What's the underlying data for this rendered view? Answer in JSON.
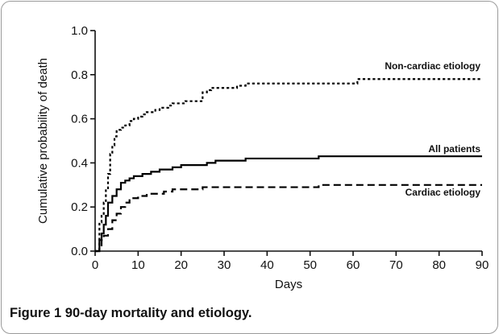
{
  "caption": {
    "lead": "Figure 1",
    "text": "90-day mortality and etiology."
  },
  "chart_data": {
    "type": "line",
    "step": true,
    "xlabel": "Days",
    "ylabel": "Cumulative probability of death",
    "xlim": [
      0,
      90
    ],
    "ylim": [
      0,
      1
    ],
    "xticks": [
      0,
      10,
      20,
      30,
      40,
      50,
      60,
      70,
      80,
      90
    ],
    "yticks": [
      "0.0",
      "0.2",
      "0.4",
      "0.6",
      "0.8",
      "1.0"
    ],
    "xtick_labels": [
      "0",
      "10",
      "20",
      "30",
      "40",
      "50",
      "60",
      "70",
      "80",
      "90"
    ],
    "grid": false,
    "series": [
      {
        "name": "Non-cardiac etiology",
        "style": "dotted",
        "x": [
          0,
          1,
          1.5,
          2,
          2.5,
          3,
          3.5,
          4,
          4.5,
          5,
          6,
          7,
          8,
          9,
          10,
          11,
          12,
          13,
          14,
          15,
          16,
          17,
          18,
          19,
          20,
          21,
          23,
          25,
          26,
          27,
          29,
          31,
          33,
          35,
          40,
          45,
          50,
          55,
          60,
          61,
          70,
          90
        ],
        "y": [
          0,
          0.13,
          0.16,
          0.22,
          0.28,
          0.35,
          0.44,
          0.48,
          0.52,
          0.55,
          0.56,
          0.57,
          0.59,
          0.6,
          0.61,
          0.62,
          0.63,
          0.63,
          0.64,
          0.65,
          0.65,
          0.66,
          0.67,
          0.67,
          0.67,
          0.68,
          0.68,
          0.72,
          0.73,
          0.74,
          0.74,
          0.74,
          0.75,
          0.76,
          0.76,
          0.76,
          0.76,
          0.76,
          0.76,
          0.78,
          0.78,
          0.78
        ]
      },
      {
        "name": "All patients",
        "style": "solid",
        "x": [
          0,
          1,
          1.5,
          2,
          2.5,
          3,
          4,
          5,
          6,
          7,
          8,
          9,
          10,
          11,
          12,
          13,
          14,
          15,
          16,
          18,
          20,
          22,
          24,
          26,
          28,
          30,
          35,
          40,
          45,
          52,
          60,
          90
        ],
        "y": [
          0,
          0.05,
          0.08,
          0.12,
          0.16,
          0.22,
          0.25,
          0.28,
          0.31,
          0.32,
          0.33,
          0.34,
          0.34,
          0.35,
          0.35,
          0.36,
          0.36,
          0.37,
          0.37,
          0.38,
          0.39,
          0.39,
          0.39,
          0.4,
          0.41,
          0.41,
          0.42,
          0.42,
          0.42,
          0.43,
          0.43,
          0.43
        ]
      },
      {
        "name": "Cardiac etiology",
        "style": "dashed",
        "x": [
          0,
          1,
          1.5,
          2,
          3,
          4,
          5,
          6,
          7,
          8,
          9,
          10,
          12,
          14,
          16,
          18,
          20,
          25,
          30,
          40,
          52,
          60,
          90
        ],
        "y": [
          0,
          0.02,
          0.05,
          0.07,
          0.1,
          0.14,
          0.17,
          0.2,
          0.22,
          0.24,
          0.24,
          0.25,
          0.26,
          0.26,
          0.27,
          0.28,
          0.28,
          0.29,
          0.29,
          0.29,
          0.3,
          0.3,
          0.3
        ]
      }
    ],
    "annotations": [
      {
        "text": "Non-cardiac etiology",
        "series": "Non-cardiac etiology"
      },
      {
        "text": "All patients",
        "series": "All patients"
      },
      {
        "text": "Cardiac etiology",
        "series": "Cardiac etiology"
      }
    ]
  }
}
